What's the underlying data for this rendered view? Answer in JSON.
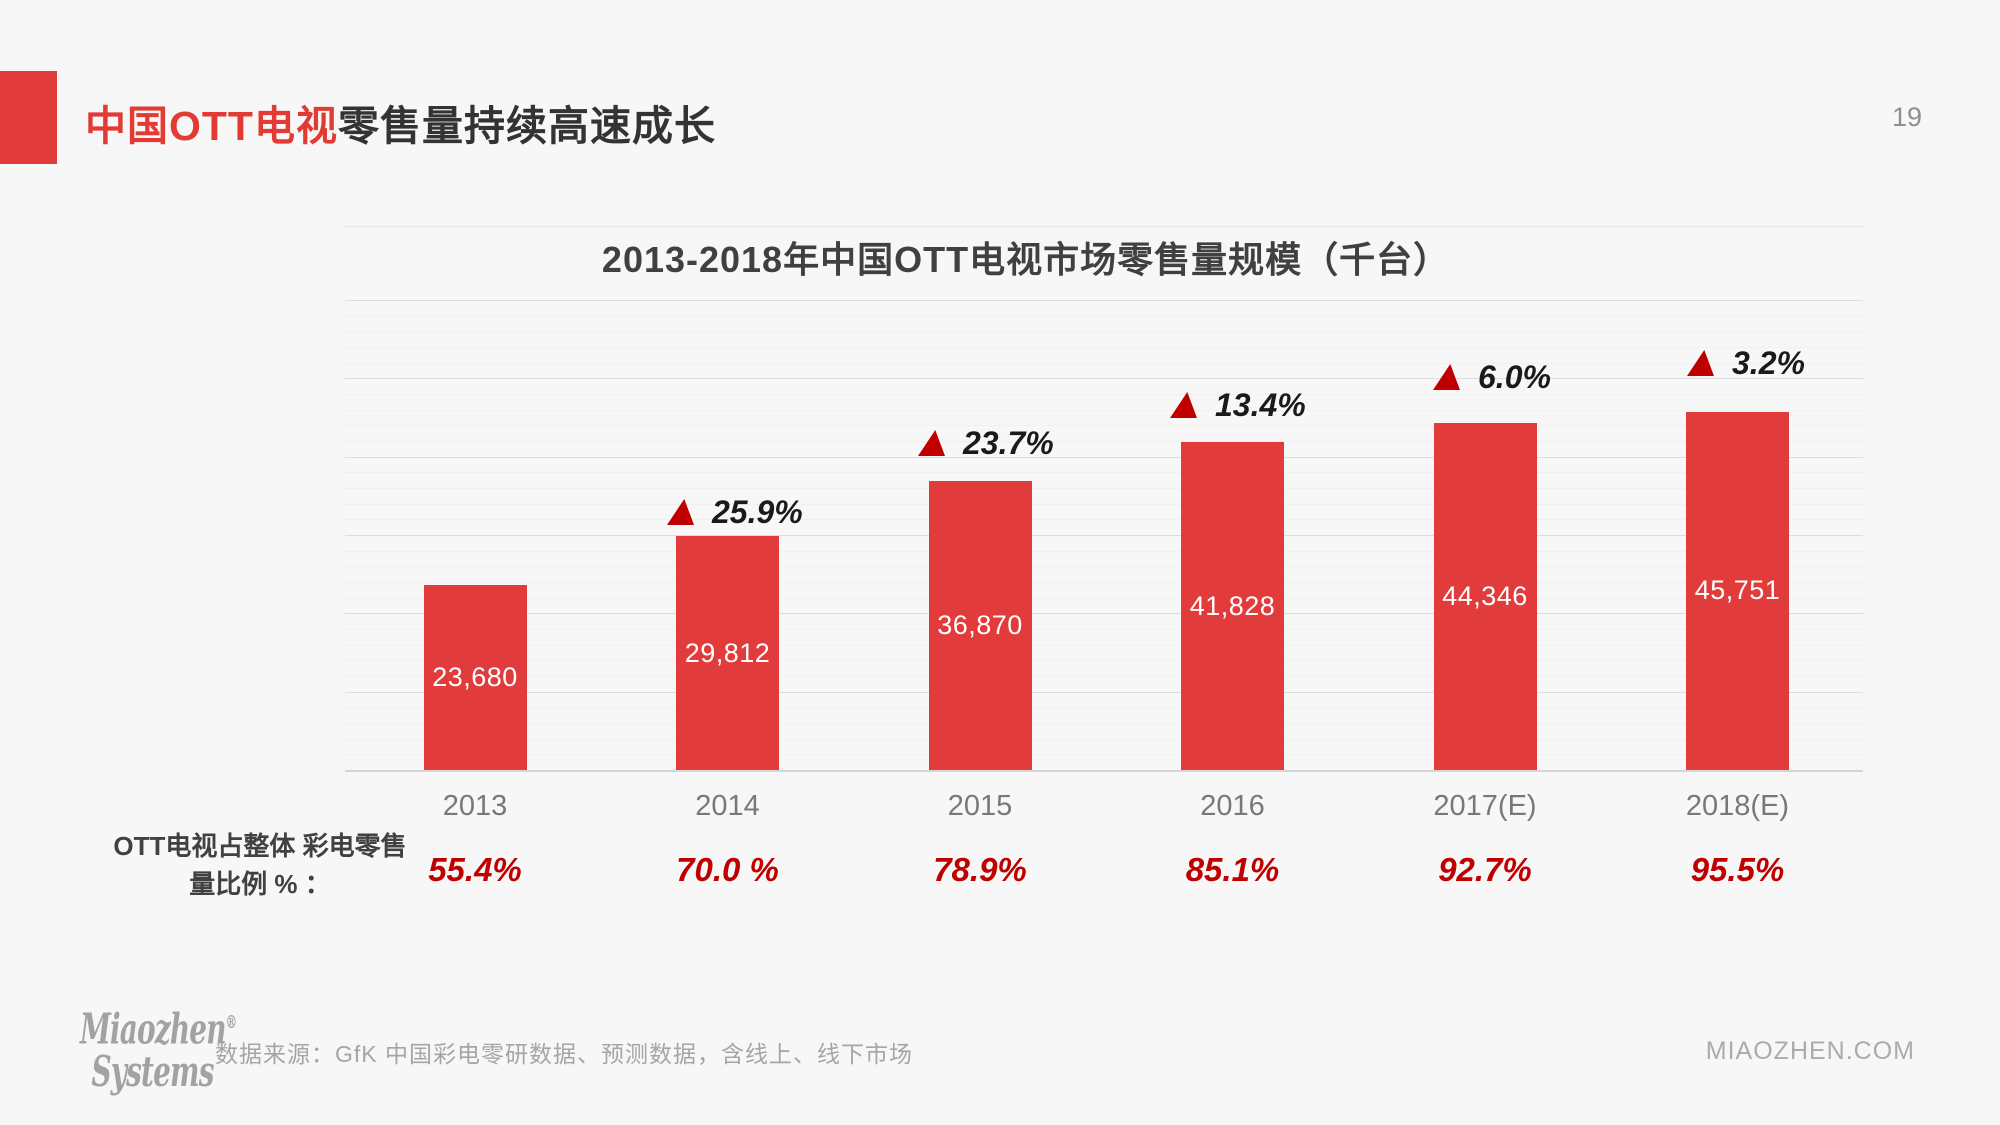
{
  "page": {
    "number": "19"
  },
  "header": {
    "title_red": "中国OTT电视",
    "title_rest": "零售量持续高速成长"
  },
  "chart_data": {
    "type": "bar",
    "title": "2013-2018年中国OTT电视市场零售量规模（千台）",
    "categories": [
      "2013",
      "2014",
      "2015",
      "2016",
      "2017(E)",
      "2018(E)"
    ],
    "values": [
      23680,
      29812,
      36870,
      41828,
      44346,
      45751
    ],
    "value_labels": [
      "23,680",
      "29,812",
      "36,870",
      "41,828",
      "44,346",
      "45,751"
    ],
    "growth_labels": [
      null,
      "25.9%",
      "23.7%",
      "13.4%",
      "6.0%",
      "3.2%"
    ],
    "share_row_label_line1": "OTT电视占整体",
    "share_row_label_line2": "彩电零售量比例 % ：",
    "share_values": [
      "55.4%",
      "70.0 %",
      "78.9%",
      "85.1%",
      "92.7%",
      "95.5%"
    ],
    "ylim": [
      0,
      60000
    ],
    "grid": true,
    "legend": "none",
    "bar_color": "#e23b3b",
    "deep_red": "#c00000"
  },
  "footer": {
    "logo_line1": "Miaozhen",
    "logo_reg": "®",
    "logo_line2": "Systems",
    "source": "数据来源：GfK 中国彩电零研数据、预测数据，含线上、线下市场",
    "site": "MIAOZHEN.COM"
  }
}
